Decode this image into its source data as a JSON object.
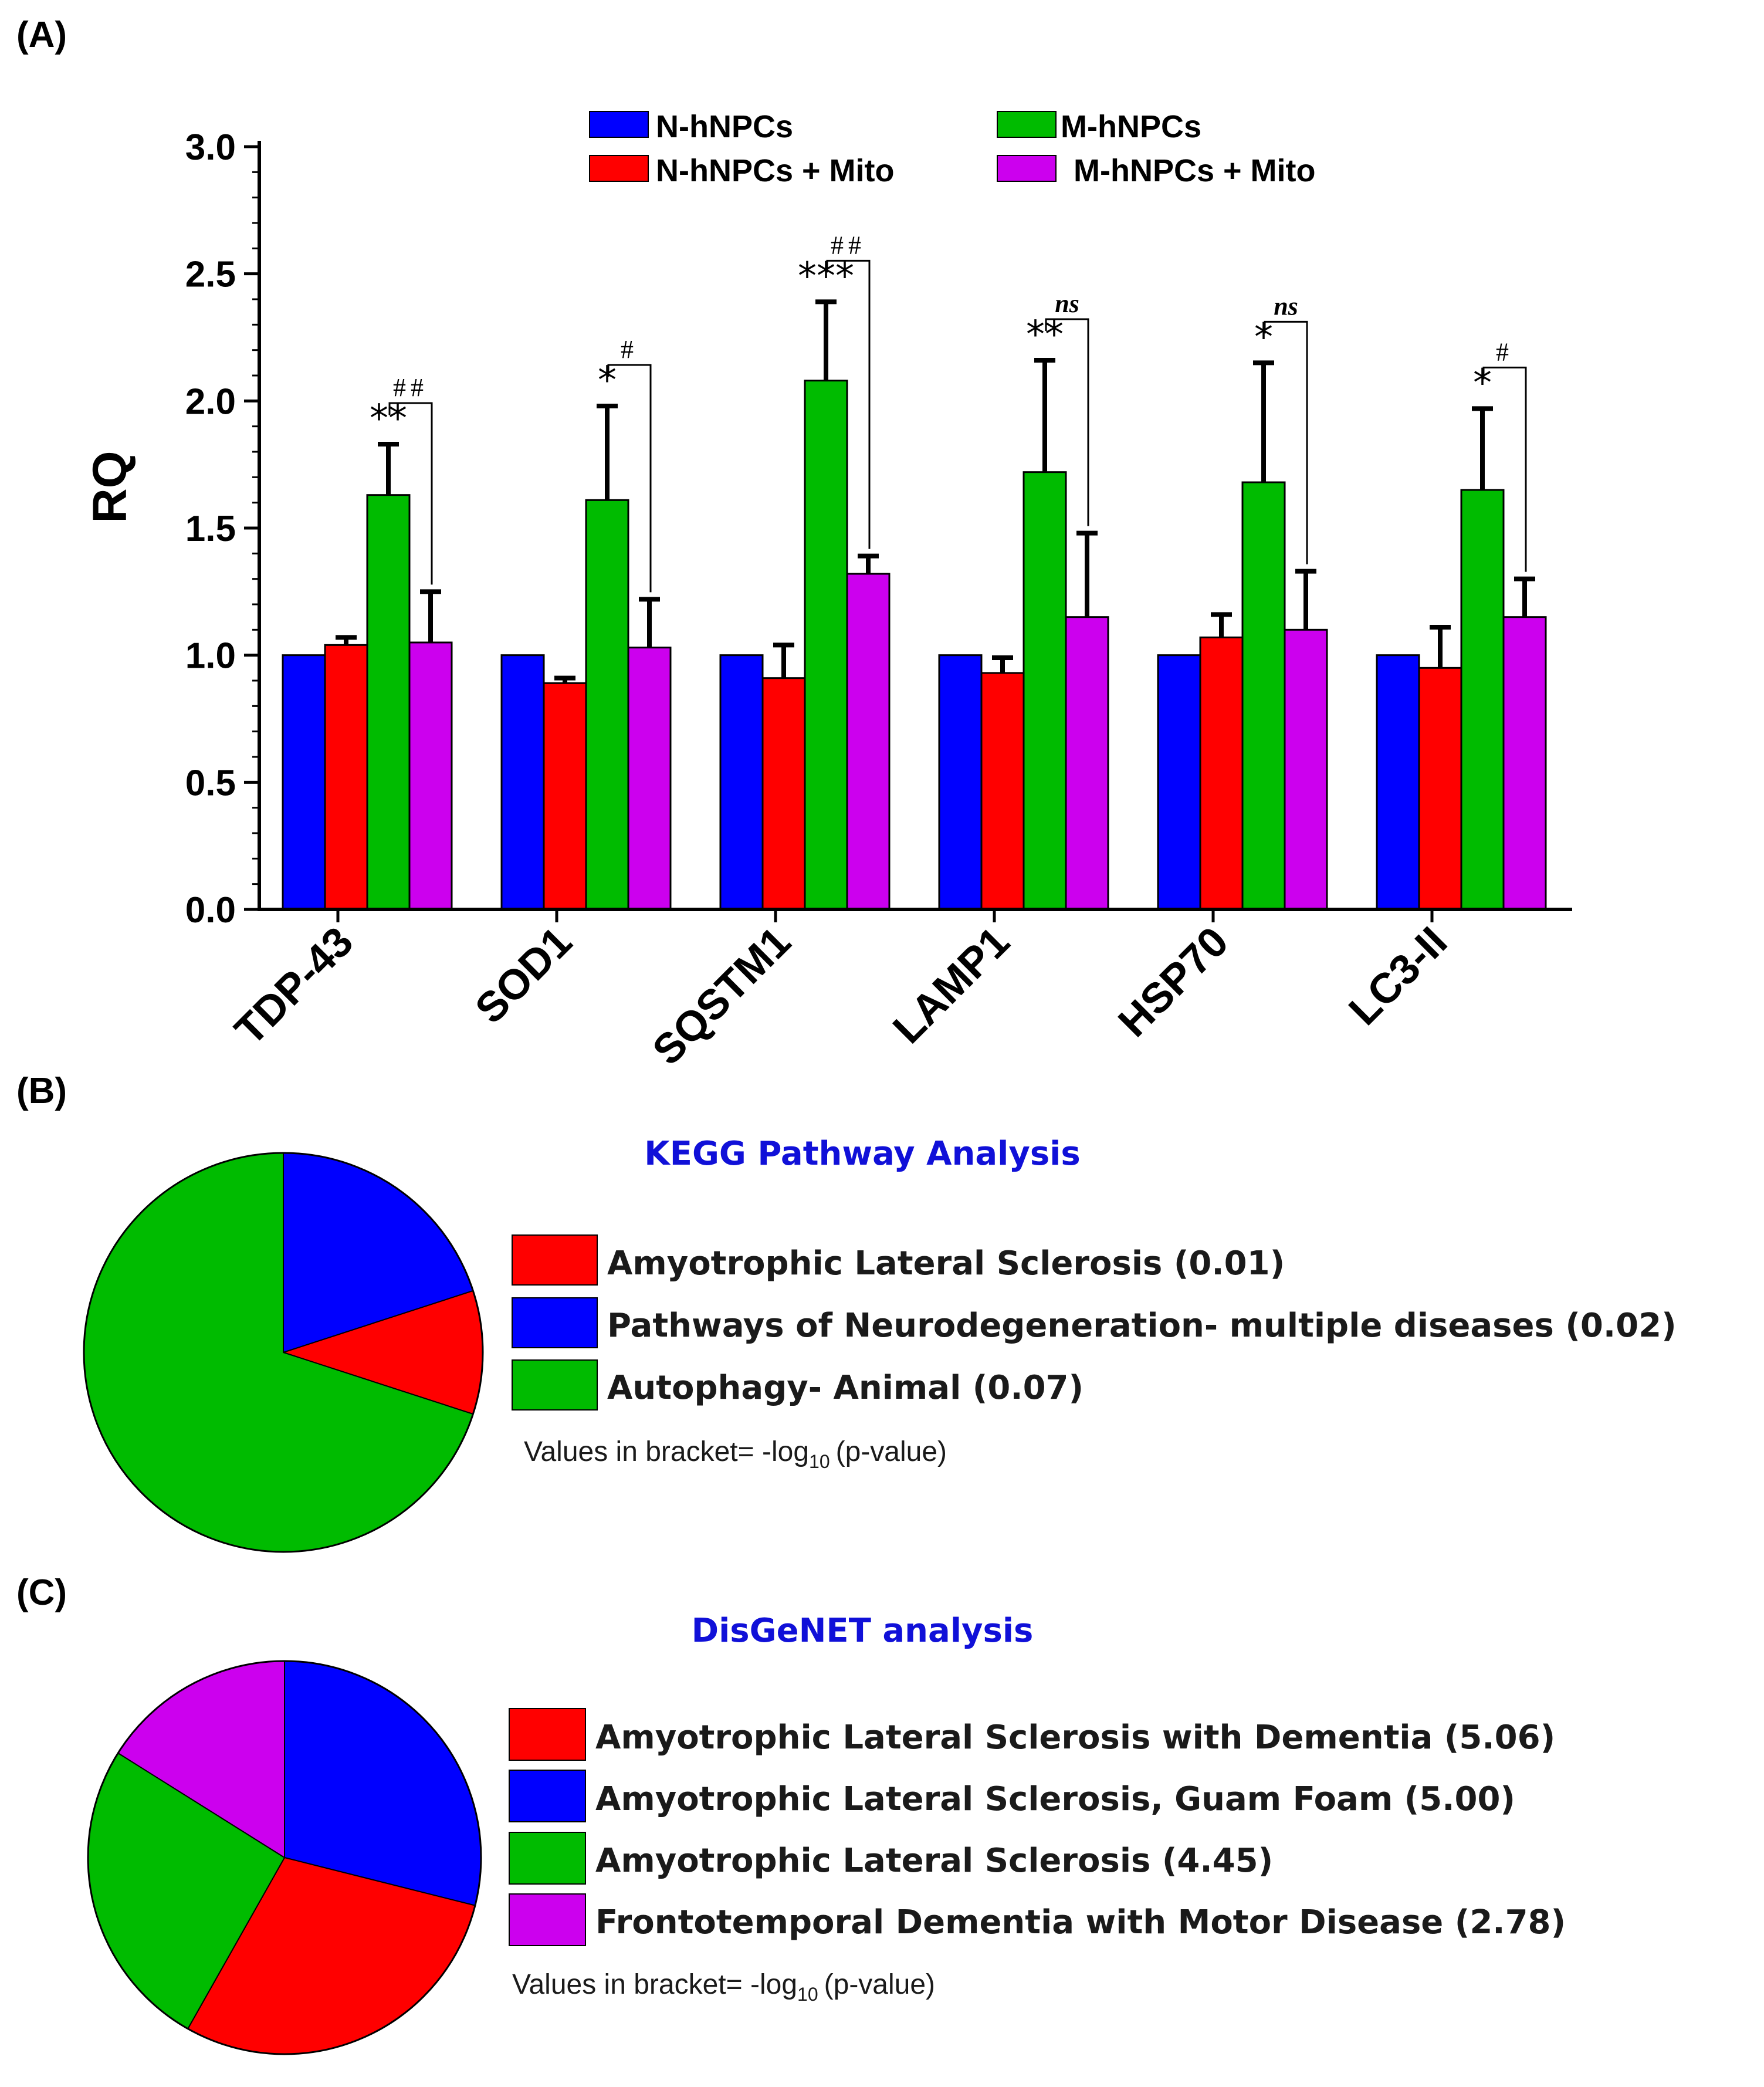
{
  "panels": {
    "a": "(A)",
    "b": "(B)",
    "c": "(C)"
  },
  "chart_data": [
    {
      "type": "bar",
      "title": "",
      "xlabel": "",
      "ylabel": "RQ",
      "ylim": [
        0,
        3.0
      ],
      "yticks": [
        "0.0",
        "0.5",
        "1.0",
        "1.5",
        "2.0",
        "2.5",
        "3.0"
      ],
      "categories": [
        "TDP-43",
        "SOD1",
        "SQSTM1",
        "LAMP1",
        "HSP70",
        "LC3-II"
      ],
      "series": [
        {
          "name": "N-hNPCs",
          "color": "#0000ff",
          "values": [
            1.0,
            1.0,
            1.0,
            1.0,
            1.0,
            1.0
          ],
          "errors": [
            0,
            0,
            0,
            0,
            0,
            0
          ]
        },
        {
          "name": "N-hNPCs + Mito",
          "color": "#ff0000",
          "values": [
            1.04,
            0.89,
            0.91,
            0.93,
            1.07,
            0.95
          ],
          "errors": [
            0.03,
            0.02,
            0.13,
            0.06,
            0.09,
            0.16
          ]
        },
        {
          "name": "M-hNPCs",
          "color": "#00bb00",
          "values": [
            1.63,
            1.61,
            2.08,
            1.72,
            1.68,
            1.65
          ],
          "errors": [
            0.2,
            0.37,
            0.31,
            0.44,
            0.47,
            0.32
          ]
        },
        {
          "name": "M-hNPCs + Mito",
          "color": "#cc00ee",
          "values": [
            1.05,
            1.03,
            1.32,
            1.15,
            1.1,
            1.15
          ],
          "errors": [
            0.2,
            0.19,
            0.07,
            0.33,
            0.23,
            0.15
          ]
        }
      ],
      "legend": [
        "N-hNPCs",
        "M-hNPCs",
        "N-hNPCs + Mito",
        "M-hNPCs + Mito"
      ],
      "annotations": [
        {
          "category": "TDP-43",
          "stars": "**",
          "comparison": "##"
        },
        {
          "category": "SOD1",
          "stars": "*",
          "comparison": "#"
        },
        {
          "category": "SQSTM1",
          "stars": "***",
          "comparison": "##"
        },
        {
          "category": "LAMP1",
          "stars": "**",
          "comparison": "ns"
        },
        {
          "category": "HSP70",
          "stars": "*",
          "comparison": "ns"
        },
        {
          "category": "LC3-II",
          "stars": "*",
          "comparison": "#"
        }
      ]
    },
    {
      "type": "pie",
      "title": "KEGG Pathway Analysis",
      "labels": [
        "Amyotrophic Lateral Sclerosis (0.01)",
        "Pathways of Neurodegeneration- multiple diseases (0.02)",
        "Autophagy- Animal (0.07)"
      ],
      "values": [
        0.01,
        0.02,
        0.07
      ],
      "colors": [
        "#ff0000",
        "#0000ff",
        "#00bb00"
      ],
      "note": "Values in bracket= -log",
      "note_sub": "10",
      "note_end": "(p-value)"
    },
    {
      "type": "pie",
      "title": "DisGeNET analysis",
      "labels": [
        "Amyotrophic Lateral Sclerosis with Dementia (5.06)",
        "Amyotrophic Lateral Sclerosis, Guam Foam (5.00)",
        "Amyotrophic Lateral Sclerosis (4.45)",
        "Frontotemporal Dementia with Motor Disease (2.78)"
      ],
      "values": [
        5.06,
        5.0,
        4.45,
        2.78
      ],
      "colors": [
        "#ff0000",
        "#0000ff",
        "#00bb00",
        "#cc00ee"
      ],
      "note": "Values in bracket= -log",
      "note_sub": "10",
      "note_end": "(p-value)"
    }
  ]
}
